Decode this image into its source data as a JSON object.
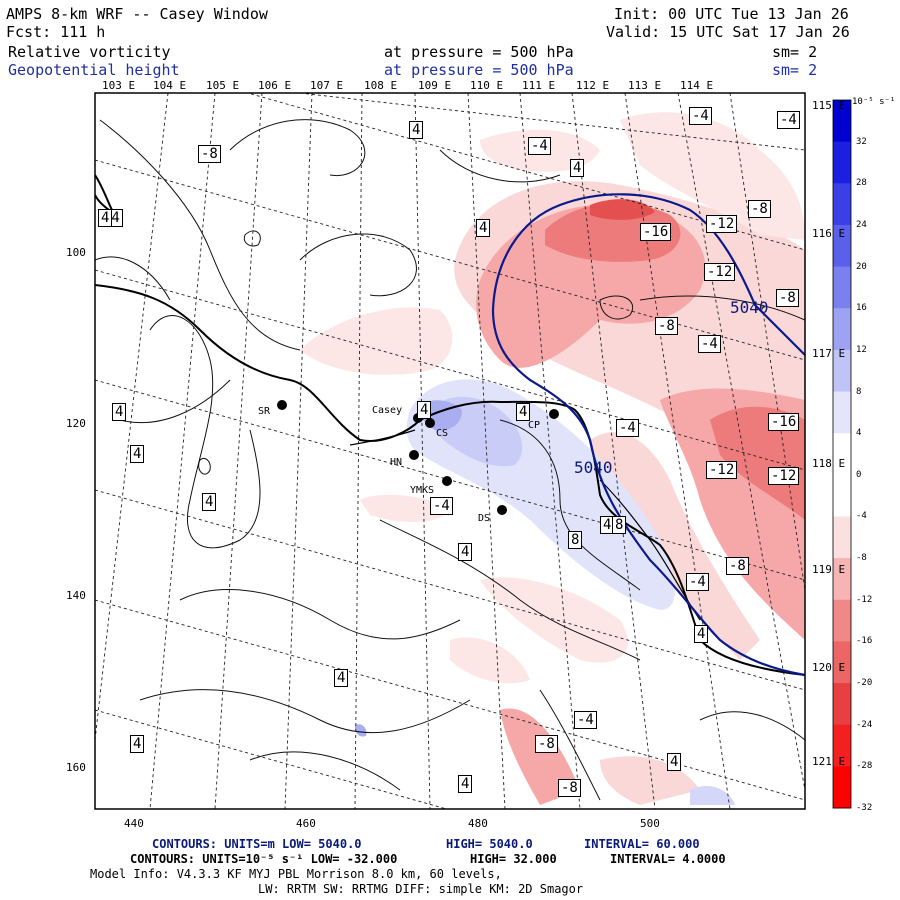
{
  "header": {
    "title": "AMPS 8-km WRF -- Casey Window",
    "forecast": "Fcst:  111 h",
    "init": "Init: 00 UTC Tue 13 Jan 26",
    "valid": "Valid: 15 UTC Sat 17 Jan 26",
    "field1": {
      "name": "Relative vorticity",
      "pressure": "at pressure =  500 hPa",
      "sm": "sm= 2"
    },
    "field2": {
      "name": "Geopotential height",
      "pressure": "at pressure =  500 hPa",
      "sm": "sm= 2"
    }
  },
  "longitude_labels": [
    "103 E",
    "104 E",
    "105 E",
    "106 E",
    "107 E",
    "108 E",
    "109 E",
    "110 E",
    "111 E",
    "112 E",
    "113 E",
    "114 E",
    "115 E",
    "116 E",
    "117 E",
    "118 E",
    "119 E",
    "120 E",
    "121 E"
  ],
  "grid_x_labels": [
    "440",
    "460",
    "480",
    "500"
  ],
  "grid_y_labels": [
    "100",
    "120",
    "140",
    "160"
  ],
  "stations": [
    {
      "name": "SR"
    },
    {
      "name": "Casey"
    },
    {
      "name": "CS"
    },
    {
      "name": "HN"
    },
    {
      "name": "YMKS"
    },
    {
      "name": "DS"
    },
    {
      "name": "CP"
    }
  ],
  "height_contour_label": "5040",
  "vorticity_labels": [
    "4",
    "-8",
    "-4",
    "-4",
    "-4",
    "4",
    "4",
    "-4",
    "-8",
    "-16",
    "-12",
    "-12",
    "-8",
    "-8",
    "-4",
    "4",
    "4",
    "4",
    "4",
    "4",
    "-4",
    "4",
    "-4",
    "4",
    "-16",
    "-12",
    "-12",
    "8",
    "8",
    "-4",
    "-8",
    "4",
    "4",
    "4",
    "-4",
    "-8",
    "4",
    "-8",
    "4",
    "4"
  ],
  "colorbar": {
    "unit": "10⁻⁵ s⁻¹",
    "labels": [
      "32",
      "28",
      "24",
      "20",
      "16",
      "12",
      "8",
      "4",
      "0",
      "-4",
      "-8",
      "-12",
      "-16",
      "-20",
      "-24",
      "-28",
      "-32"
    ]
  },
  "footer": {
    "line1": {
      "prefix": "CONTOURS:  UNITS=m  LOW=  5040.0",
      "high": "HIGH=  5040.0",
      "interval": "INTERVAL=  60.000"
    },
    "line2": {
      "prefix": "CONTOURS:  UNITS=10⁻⁵ s⁻¹  LOW= -32.000",
      "high": "HIGH=  32.000",
      "interval": "INTERVAL=  4.0000"
    },
    "line3": "Model Info: V4.3.3   KF      MYJ PBL  Morrison           8.0 km,  60 levels,",
    "line4": "LW: RRTM SW: RRTMG   DIFF: simple KM: 2D Smagor"
  },
  "colors": {
    "height_contour": "#0a1a8c",
    "title_blue": "#1f2fa0",
    "coast": "#000000"
  }
}
